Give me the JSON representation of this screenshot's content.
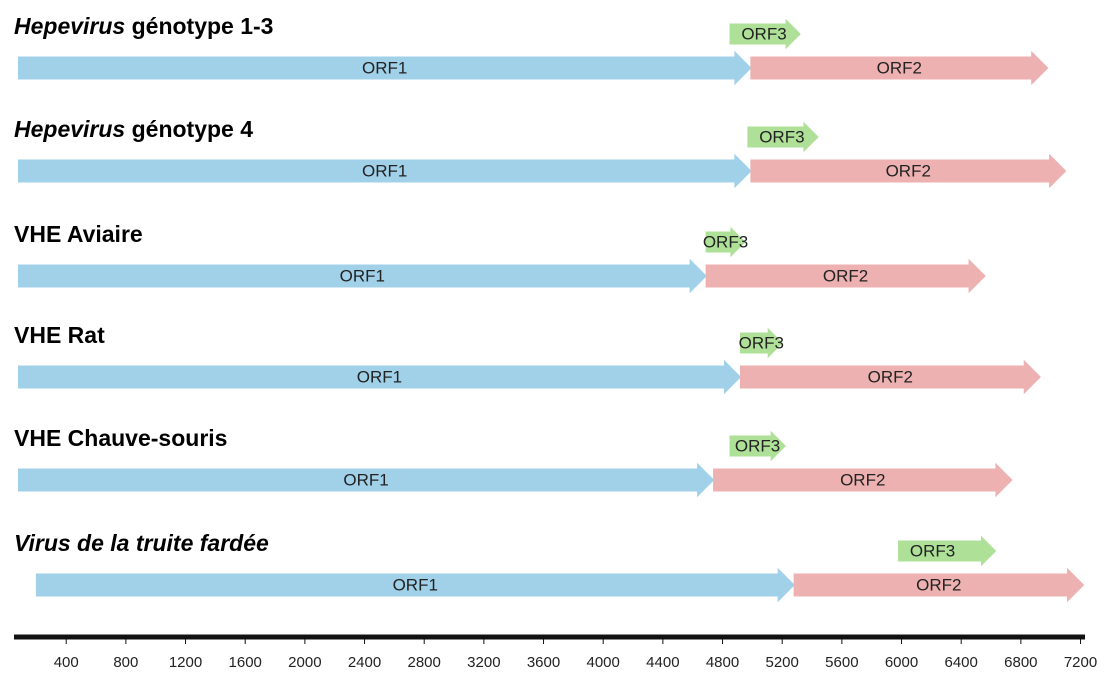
{
  "chart_data": {
    "type": "genome",
    "xlim": [
      50,
      7230
    ],
    "xticks": [
      400,
      800,
      1200,
      1600,
      2000,
      2400,
      2800,
      3200,
      3600,
      4000,
      4400,
      4800,
      5200,
      5600,
      6000,
      6400,
      6800,
      7200
    ],
    "colors": {
      "ORF1": "#a9dcf5",
      "ORF2": "#f9baba",
      "ORF3": "#b7eca0"
    },
    "rows": [
      {
        "title": [
          {
            "text": "Hepevirus",
            "italic": true
          },
          {
            "text": " génotype 1-3",
            "italic": false
          }
        ],
        "orfs": [
          {
            "name": "ORF1",
            "start": 80,
            "end": 4990
          },
          {
            "name": "ORF2",
            "start": 4990,
            "end": 6980
          },
          {
            "name": "ORF3",
            "start": 4850,
            "end": 5320
          }
        ]
      },
      {
        "title": [
          {
            "text": "Hepevirus",
            "italic": true
          },
          {
            "text": " génotype 4",
            "italic": false
          }
        ],
        "orfs": [
          {
            "name": "ORF1",
            "start": 80,
            "end": 4990
          },
          {
            "name": "ORF2",
            "start": 4990,
            "end": 7100
          },
          {
            "name": "ORF3",
            "start": 4970,
            "end": 5440
          }
        ]
      },
      {
        "title": [
          {
            "text": "VHE Aviaire",
            "italic": false
          }
        ],
        "orfs": [
          {
            "name": "ORF1",
            "start": 80,
            "end": 4690
          },
          {
            "name": "ORF2",
            "start": 4690,
            "end": 6560
          },
          {
            "name": "ORF3",
            "start": 4690,
            "end": 4950
          }
        ]
      },
      {
        "title": [
          {
            "text": "VHE Rat",
            "italic": false
          }
        ],
        "orfs": [
          {
            "name": "ORF1",
            "start": 80,
            "end": 4920
          },
          {
            "name": "ORF2",
            "start": 4920,
            "end": 6930
          },
          {
            "name": "ORF3",
            "start": 4920,
            "end": 5200
          }
        ]
      },
      {
        "title": [
          {
            "text": "VHE Chauve-souris",
            "italic": false
          }
        ],
        "orfs": [
          {
            "name": "ORF1",
            "start": 80,
            "end": 4740
          },
          {
            "name": "ORF2",
            "start": 4740,
            "end": 6740
          },
          {
            "name": "ORF3",
            "start": 4850,
            "end": 5220
          }
        ]
      },
      {
        "title": [
          {
            "text": "Virus de la truite fardée",
            "italic": true
          }
        ],
        "orfs": [
          {
            "name": "ORF1",
            "start": 200,
            "end": 5280
          },
          {
            "name": "ORF2",
            "start": 5280,
            "end": 7220
          },
          {
            "name": "ORF3",
            "start": 5980,
            "end": 6630
          }
        ]
      }
    ]
  }
}
